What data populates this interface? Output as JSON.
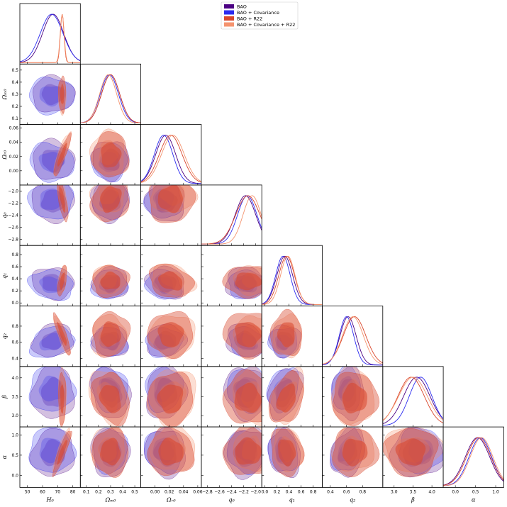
{
  "chart_data": {
    "type": "corner-plot",
    "title": "",
    "legend_position": "top-right",
    "colors": {
      "bao": "#4b0082",
      "bao_cov": "#2a2af0",
      "bao_r22": "#d9462b",
      "bao_cov_r22": "#f4936e"
    },
    "series": [
      {
        "key": "bao",
        "name": "BAO"
      },
      {
        "key": "bao_cov",
        "name": "BAO + Covariance"
      },
      {
        "key": "bao_r22",
        "name": "BAO + R22"
      },
      {
        "key": "bao_cov_r22",
        "name": "BAO + Covariance + R22"
      }
    ],
    "parameters": [
      {
        "key": "H0",
        "label": "H₀",
        "ylabel": "",
        "range": [
          45,
          85
        ],
        "ticks": [
          {
            "v": 50,
            "t": "50"
          },
          {
            "v": 60,
            "t": "60"
          },
          {
            "v": 70,
            "t": "70"
          },
          {
            "v": 80,
            "t": "80"
          }
        ]
      },
      {
        "key": "Om0",
        "label": "Ωₘ₀",
        "ylabel": "Ωₘ₀",
        "range": [
          0.05,
          0.55
        ],
        "ticks": [
          {
            "v": 0.1,
            "t": "0.1"
          },
          {
            "v": 0.2,
            "t": "0.2"
          },
          {
            "v": 0.3,
            "t": "0.3"
          },
          {
            "v": 0.4,
            "t": "0.4"
          },
          {
            "v": 0.5,
            "t": "0.5"
          }
        ]
      },
      {
        "key": "Or0",
        "label": "Ωᵣ₀",
        "ylabel": "Ωᵣ₀",
        "range": [
          -0.02,
          0.065
        ],
        "ticks": [
          {
            "v": 0.0,
            "t": "0.00"
          },
          {
            "v": 0.02,
            "t": "0.02"
          },
          {
            "v": 0.04,
            "t": "0.04"
          },
          {
            "v": 0.06,
            "t": "0.06"
          }
        ]
      },
      {
        "key": "q0",
        "label": "q₀",
        "ylabel": "q₀",
        "range": [
          -2.9,
          -1.9
        ],
        "ticks": [
          {
            "v": -2.8,
            "t": "−2.8"
          },
          {
            "v": -2.6,
            "t": "−2.6"
          },
          {
            "v": -2.4,
            "t": "−2.4"
          },
          {
            "v": -2.2,
            "t": "−2.2"
          },
          {
            "v": -2.0,
            "t": "−2.0"
          }
        ]
      },
      {
        "key": "q1",
        "label": "q₁",
        "ylabel": "q₁",
        "range": [
          -0.05,
          0.95
        ],
        "ticks": [
          {
            "v": 0.0,
            "t": "0.0"
          },
          {
            "v": 0.2,
            "t": "0.2"
          },
          {
            "v": 0.4,
            "t": "0.4"
          },
          {
            "v": 0.6,
            "t": "0.6"
          },
          {
            "v": 0.8,
            "t": "0.8"
          }
        ]
      },
      {
        "key": "q2",
        "label": "q₂",
        "ylabel": "q₂",
        "range": [
          0.3,
          1.05
        ],
        "ticks": [
          {
            "v": 0.4,
            "t": "0.4"
          },
          {
            "v": 0.6,
            "t": "0.6"
          },
          {
            "v": 0.8,
            "t": "0.8"
          }
        ]
      },
      {
        "key": "beta",
        "label": "β",
        "ylabel": "β",
        "range": [
          2.7,
          4.3
        ],
        "ticks": [
          {
            "v": 3.0,
            "t": "3.0"
          },
          {
            "v": 3.5,
            "t": "3.5"
          },
          {
            "v": 4.0,
            "t": "4.0"
          }
        ]
      },
      {
        "key": "alpha",
        "label": "α",
        "ylabel": "α",
        "range": [
          -0.3,
          1.2
        ],
        "ticks": [
          {
            "v": 0.0,
            "t": "0.0"
          },
          {
            "v": 0.5,
            "t": "0.5"
          },
          {
            "v": 1.0,
            "t": "1.0"
          }
        ]
      }
    ]
  }
}
